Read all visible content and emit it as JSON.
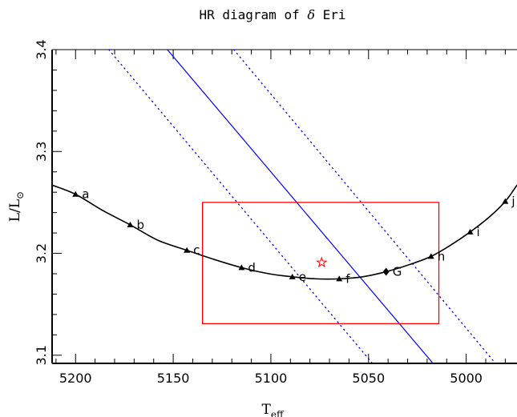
{
  "chart_data": {
    "type": "line",
    "title_prefix": "HR diagram of ",
    "title_symbol": "δ",
    "title_suffix": " Eri",
    "xlabel_main": "T",
    "xlabel_sub": "eff",
    "ylabel_main": "L/L",
    "ylabel_sub": "⊙",
    "xlim": [
      5212,
      4974
    ],
    "ylim": [
      3.092,
      3.4
    ],
    "x_ticks": [
      5200,
      5150,
      5100,
      5050,
      5000
    ],
    "y_ticks": [
      3.1,
      3.2,
      3.3,
      3.4
    ],
    "grid": false,
    "colors": {
      "track": "#000000",
      "box": "#ff0000",
      "line": "#0000ff",
      "star": "#ff0000"
    },
    "track": {
      "x": [
        5212,
        5200,
        5186,
        5172,
        5158,
        5143,
        5129,
        5115,
        5101,
        5089,
        5077,
        5065,
        5053,
        5041,
        5029,
        5018,
        5008,
        4998,
        4988,
        4980,
        4974
      ],
      "y": [
        3.267,
        3.258,
        3.242,
        3.228,
        3.213,
        3.203,
        3.194,
        3.186,
        3.18,
        3.177,
        3.175,
        3.175,
        3.177,
        3.182,
        3.189,
        3.197,
        3.208,
        3.221,
        3.236,
        3.251,
        3.267
      ]
    },
    "models": [
      {
        "label": "a",
        "x": 5200,
        "y": 3.258,
        "marker": "triangle"
      },
      {
        "label": "b",
        "x": 5172,
        "y": 3.228,
        "marker": "triangle"
      },
      {
        "label": "c",
        "x": 5143,
        "y": 3.203,
        "marker": "triangle"
      },
      {
        "label": "d",
        "x": 5115,
        "y": 3.186,
        "marker": "triangle"
      },
      {
        "label": "e",
        "x": 5089,
        "y": 3.177,
        "marker": "triangle"
      },
      {
        "label": "f",
        "x": 5065,
        "y": 3.175,
        "marker": "triangle"
      },
      {
        "label": "G",
        "x": 5041,
        "y": 3.182,
        "marker": "diamond"
      },
      {
        "label": "h",
        "x": 5018,
        "y": 3.197,
        "marker": "triangle"
      },
      {
        "label": "i",
        "x": 4998,
        "y": 3.221,
        "marker": "triangle"
      },
      {
        "label": "j",
        "x": 4980,
        "y": 3.251,
        "marker": "triangle"
      }
    ],
    "error_box": {
      "x": [
        5135,
        5014
      ],
      "y": [
        3.131,
        3.25
      ]
    },
    "observed": {
      "x": 5074,
      "y": 3.191
    },
    "solid_line": {
      "x": [
        5153,
        5017
      ],
      "y": [
        3.4,
        3.092
      ]
    },
    "dotted_lines": [
      {
        "x": [
          5183,
          5048
        ],
        "y": [
          3.4,
          3.092
        ]
      },
      {
        "x": [
          5119,
          4985
        ],
        "y": [
          3.4,
          3.092
        ]
      }
    ]
  }
}
